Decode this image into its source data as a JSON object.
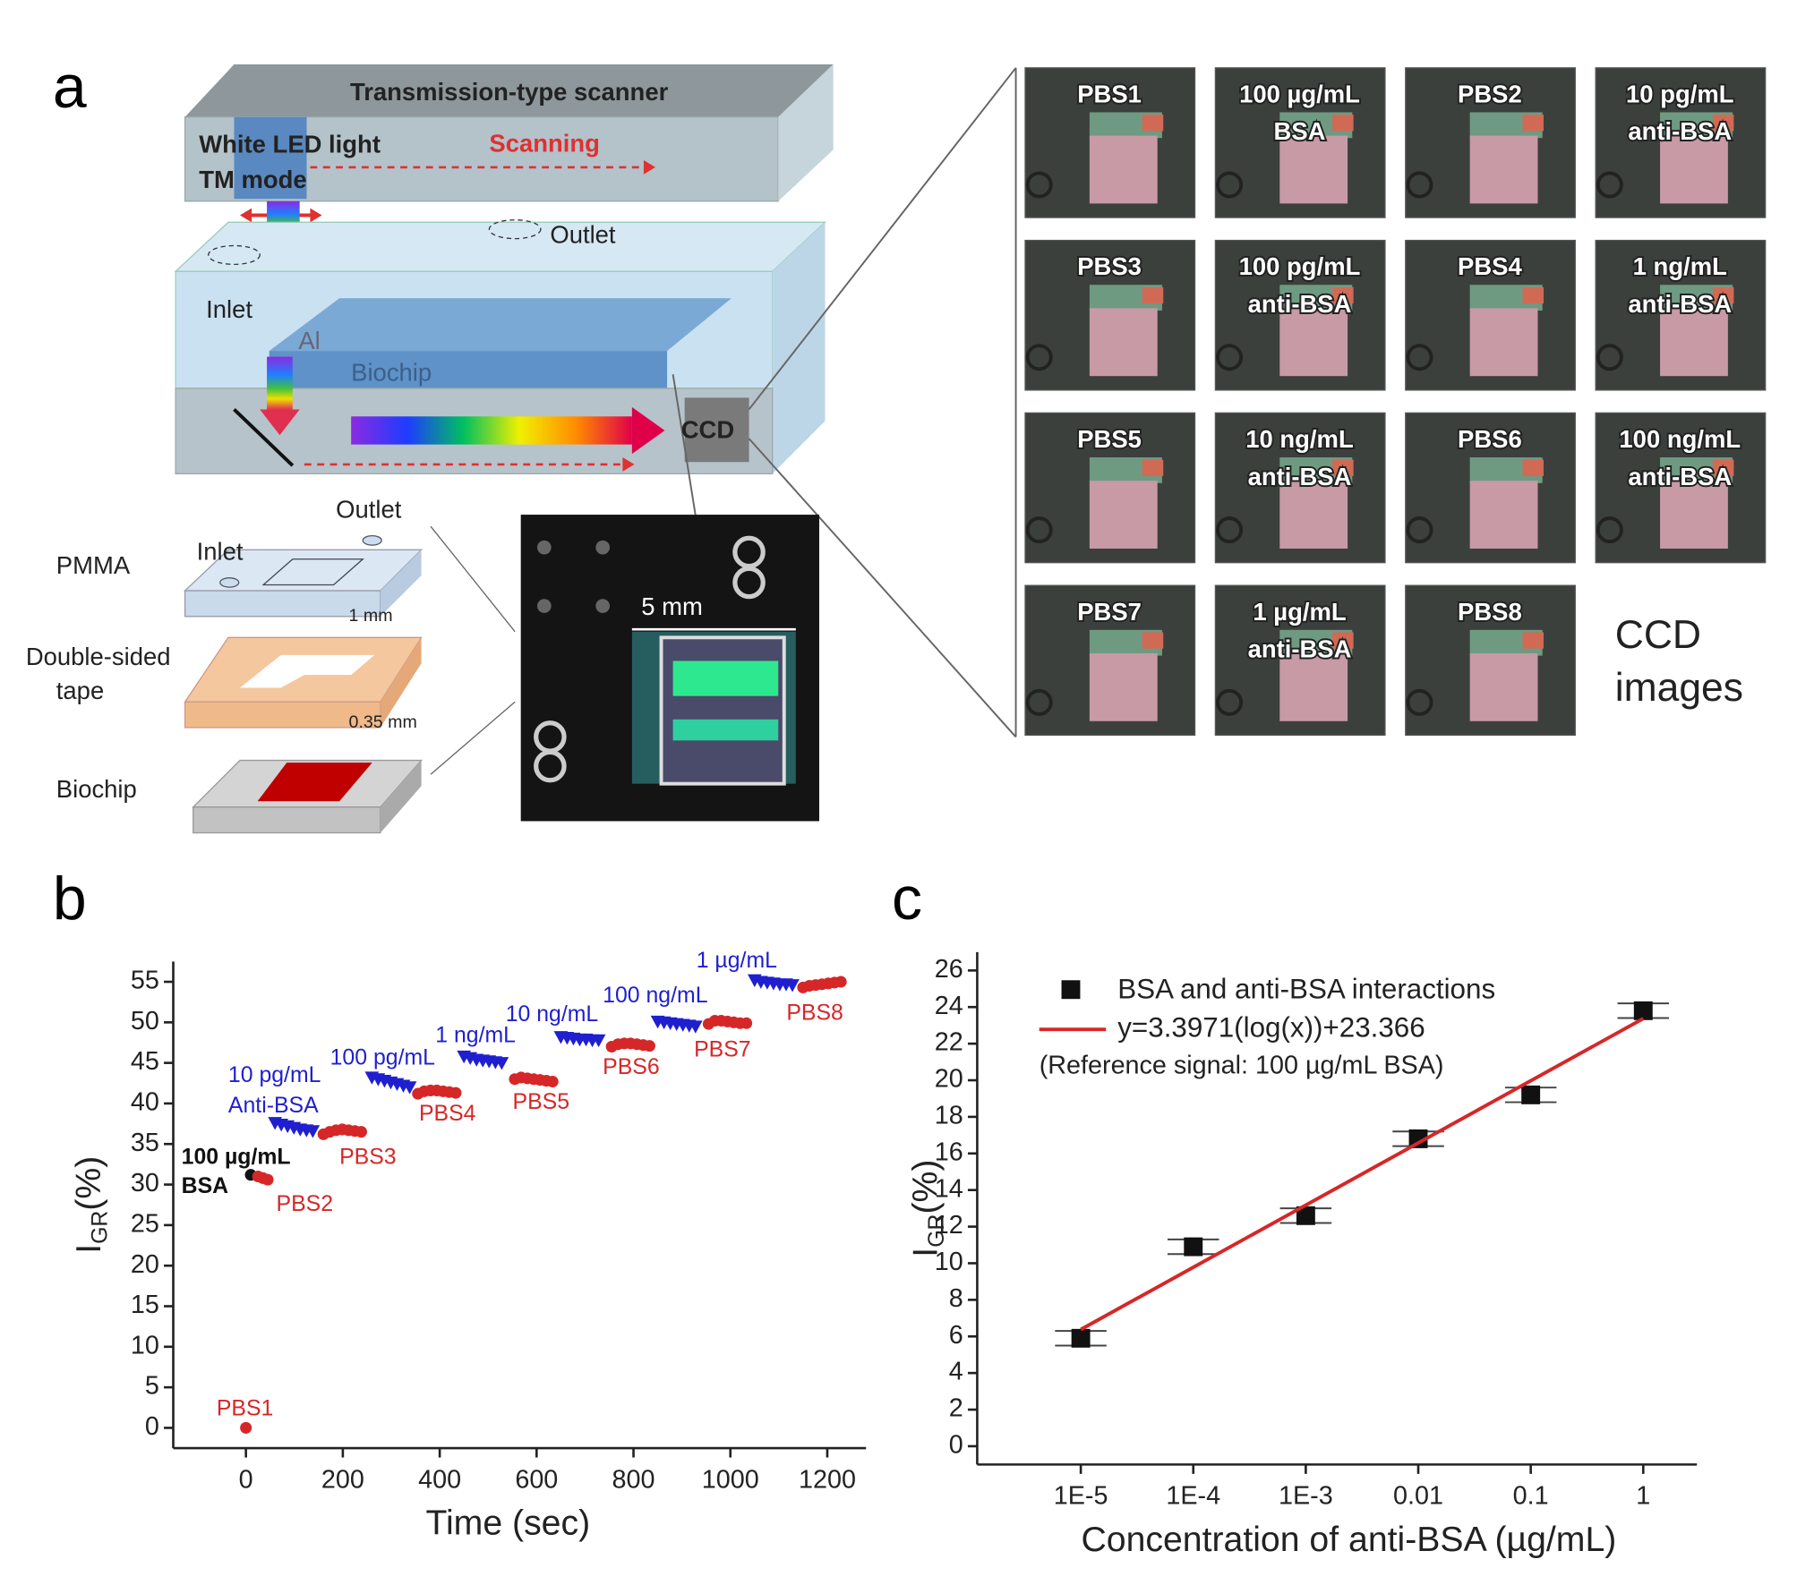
{
  "panel_labels": [
    "a",
    "b",
    "c"
  ],
  "diagram": {
    "scanner_title": "Transmission-type scanner",
    "light": "White LED light",
    "mode": "TM mode",
    "scanning": "Scanning",
    "inlet": "Inlet",
    "outlet": "Outlet",
    "al": "Al",
    "biochip": "Biochip",
    "ccd": "CCD",
    "layers": {
      "outlet": "Outlet",
      "inlet": "Inlet",
      "pmma": "PMMA",
      "pmma_thickness": "1 mm",
      "tape_1": "Double-sided",
      "tape_2": "tape",
      "tape_thickness": "0.35 mm",
      "biochip": "Biochip"
    },
    "photo_scale": "5 mm",
    "ccd_images": [
      {
        "lines": [
          "PBS1"
        ]
      },
      {
        "lines": [
          "100 µg/mL",
          "BSA"
        ]
      },
      {
        "lines": [
          "PBS2"
        ]
      },
      {
        "lines": [
          "10 pg/mL",
          "anti-BSA"
        ]
      },
      {
        "lines": [
          "PBS3"
        ]
      },
      {
        "lines": [
          "100 pg/mL",
          "anti-BSA"
        ]
      },
      {
        "lines": [
          "PBS4"
        ]
      },
      {
        "lines": [
          "1 ng/mL",
          "anti-BSA"
        ]
      },
      {
        "lines": [
          "PBS5"
        ]
      },
      {
        "lines": [
          "10 ng/mL",
          "anti-BSA"
        ]
      },
      {
        "lines": [
          "PBS6"
        ]
      },
      {
        "lines": [
          "100 ng/mL",
          "anti-BSA"
        ]
      },
      {
        "lines": [
          "PBS7"
        ]
      },
      {
        "lines": [
          "1 µg/mL",
          "anti-BSA"
        ]
      },
      {
        "lines": [
          "PBS8"
        ]
      }
    ],
    "ccd_caption": [
      "CCD",
      "images"
    ]
  },
  "chart_data": [
    {
      "type": "scatter",
      "xlabel": "Time (sec)",
      "ylabel": [
        "I",
        "GR",
        "(%)"
      ],
      "xlim": [
        -150,
        1280
      ],
      "ylim": [
        -2.5,
        57.5
      ],
      "xticks": [
        0,
        200,
        400,
        600,
        800,
        1000,
        1200
      ],
      "yticks": [
        0,
        5,
        10,
        15,
        20,
        25,
        30,
        35,
        40,
        45,
        50,
        55
      ],
      "series": [
        {
          "color": "#111111",
          "marker": "circle",
          "x": [
            10
          ],
          "values": [
            31.2
          ]
        },
        {
          "color": "#d62728",
          "marker": "circle",
          "x": [
            0,
            25,
            35,
            45,
            160,
            173,
            186,
            199,
            212,
            225,
            238,
            355,
            368,
            381,
            394,
            407,
            420,
            433,
            555,
            568,
            581,
            594,
            607,
            620,
            633,
            755,
            768,
            781,
            794,
            807,
            820,
            833,
            955,
            968,
            981,
            994,
            1007,
            1020,
            1033,
            1150,
            1163,
            1176,
            1189,
            1202,
            1215,
            1228
          ],
          "values": [
            0,
            31.0,
            30.8,
            30.6,
            36.2,
            36.5,
            36.7,
            36.8,
            36.7,
            36.6,
            36.5,
            41.2,
            41.5,
            41.6,
            41.6,
            41.5,
            41.4,
            41.3,
            43.0,
            43.2,
            43.1,
            43.0,
            42.9,
            42.8,
            42.7,
            47.0,
            47.3,
            47.4,
            47.4,
            47.3,
            47.2,
            47.1,
            49.8,
            50.2,
            50.2,
            50.1,
            50.0,
            49.9,
            49.9,
            54.3,
            54.5,
            54.6,
            54.7,
            54.8,
            54.9,
            55.0
          ]
        },
        {
          "color": "#1f1fd0",
          "marker": "triangle",
          "x": [
            60,
            73,
            86,
            99,
            112,
            125,
            138,
            260,
            273,
            286,
            299,
            312,
            325,
            338,
            450,
            463,
            476,
            489,
            502,
            515,
            528,
            650,
            663,
            676,
            689,
            702,
            715,
            728,
            850,
            863,
            876,
            889,
            902,
            915,
            928,
            1050,
            1063,
            1076,
            1089,
            1102,
            1115,
            1128
          ],
          "values": [
            37.6,
            37.4,
            37.2,
            37.0,
            36.8,
            36.7,
            36.6,
            43.2,
            43.0,
            42.8,
            42.6,
            42.4,
            42.2,
            42.0,
            45.8,
            45.6,
            45.4,
            45.3,
            45.2,
            45.1,
            45.0,
            48.2,
            48.1,
            48.0,
            47.9,
            47.9,
            47.8,
            47.8,
            50.1,
            50.0,
            49.9,
            49.8,
            49.7,
            49.6,
            49.5,
            55.2,
            55.0,
            54.9,
            54.8,
            54.7,
            54.7,
            54.6
          ]
        }
      ],
      "annotations": [
        {
          "text": "100 µg/mL",
          "color": "#111111"
        },
        {
          "text": "BSA",
          "color": "#111111"
        },
        {
          "text": "PBS1",
          "color": "#d62728"
        },
        {
          "text": "PBS2",
          "color": "#d62728"
        },
        {
          "text": "PBS3",
          "color": "#d62728"
        },
        {
          "text": "PBS4",
          "color": "#d62728"
        },
        {
          "text": "PBS5",
          "color": "#d62728"
        },
        {
          "text": "PBS6",
          "color": "#d62728"
        },
        {
          "text": "PBS7",
          "color": "#d62728"
        },
        {
          "text": "PBS8",
          "color": "#d62728"
        },
        {
          "text": "10 pg/mL",
          "color": "#1f1fd0"
        },
        {
          "text": "Anti-BSA",
          "color": "#1f1fd0"
        },
        {
          "text": "100 pg/mL",
          "color": "#1f1fd0"
        },
        {
          "text": "1 ng/mL",
          "color": "#1f1fd0"
        },
        {
          "text": "10 ng/mL",
          "color": "#1f1fd0"
        },
        {
          "text": "100 ng/mL",
          "color": "#1f1fd0"
        },
        {
          "text": "1 µg/mL",
          "color": "#1f1fd0"
        }
      ]
    },
    {
      "type": "scatter",
      "xlabel": "Concentration of anti-BSA (µg/mL)",
      "ylabel": [
        "I",
        "GR",
        "(%)"
      ],
      "log_x": true,
      "xlim": [
        1.2e-06,
        3
      ],
      "ylim": [
        -1,
        27
      ],
      "xticks": [
        {
          "value": 1e-05,
          "label": "1E-5"
        },
        {
          "value": 0.0001,
          "label": "1E-4"
        },
        {
          "value": 0.001,
          "label": "1E-3"
        },
        0.01,
        0.1,
        1
      ],
      "yticks": [
        0,
        2,
        4,
        6,
        8,
        10,
        12,
        14,
        16,
        18,
        20,
        22,
        24,
        26
      ],
      "series": [
        {
          "name": "BSA and anti-BSA interactions",
          "color": "#111111",
          "marker": "square",
          "x": [
            1e-05,
            0.0001,
            0.001,
            0.01,
            0.1,
            1
          ],
          "values": [
            5.9,
            10.9,
            12.6,
            16.8,
            19.2,
            23.8
          ],
          "yerr": [
            0.4,
            0.4,
            0.4,
            0.4,
            0.4,
            0.4
          ]
        }
      ],
      "fit_line": {
        "name": "y=3.3971(log(x))+23.366",
        "color": "#d62728",
        "x": [
          1e-05,
          1
        ],
        "values": [
          6.38,
          23.37
        ]
      },
      "legend_note": "(Reference signal: 100 µg/mL BSA)"
    }
  ]
}
